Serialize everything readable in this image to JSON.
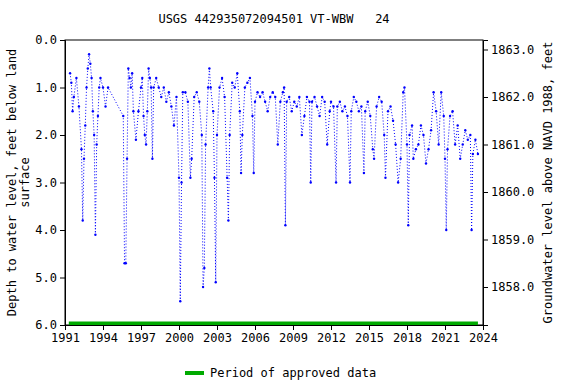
{
  "chart_data": {
    "type": "line",
    "title": "USGS 442935072094501 VT-WBW   24",
    "y_label": "Depth to water level, feet below land surface",
    "y2_label": "Groundwater level above NAVD 1988, feet",
    "xlim": [
      1991,
      2024
    ],
    "xticks": [
      1991,
      1994,
      1997,
      2000,
      2003,
      2006,
      2009,
      2012,
      2015,
      2018,
      2021,
      2024
    ],
    "ylim": [
      0,
      6
    ],
    "yticks": [
      {
        "value": 0,
        "label": "0.0"
      },
      {
        "value": 1,
        "label": "1.0"
      },
      {
        "value": 2,
        "label": "2.0"
      },
      {
        "value": 3,
        "label": "3.0"
      },
      {
        "value": 4,
        "label": "4.0"
      },
      {
        "value": 5,
        "label": "5.0"
      },
      {
        "value": 6,
        "label": "6.0"
      }
    ],
    "y2lim": [
      1863.2,
      1857.2
    ],
    "y2ticks": [
      {
        "value": 1858,
        "label": "1858.0"
      },
      {
        "value": 1859,
        "label": "1859.0"
      },
      {
        "value": 1860,
        "label": "1860.0"
      },
      {
        "value": 1861,
        "label": "1861.0"
      },
      {
        "value": 1862,
        "label": "1862.0"
      },
      {
        "value": 1863,
        "label": "1863.0"
      }
    ],
    "grid": false,
    "legend": "bottom",
    "series": [
      {
        "color": "#0000ff",
        "type": "line",
        "marker": "circle",
        "line_style": "dotted",
        "x": [
          1991.4,
          1991.5,
          1991.6,
          1991.7,
          1991.9,
          1992.1,
          1992.3,
          1992.4,
          1992.5,
          1992.6,
          1992.7,
          1992.8,
          1992.9,
          1993.0,
          1993.1,
          1993.2,
          1993.3,
          1993.4,
          1993.5,
          1993.6,
          1993.7,
          1993.8,
          1994.0,
          1994.2,
          1994.4,
          1995.6,
          1995.7,
          1995.8,
          1995.9,
          1996.0,
          1996.1,
          1996.2,
          1996.3,
          1996.4,
          1996.6,
          1996.8,
          1997.0,
          1997.1,
          1997.2,
          1997.3,
          1997.4,
          1997.5,
          1997.6,
          1997.7,
          1997.8,
          1997.9,
          1998.0,
          1998.2,
          1998.4,
          1998.6,
          1998.8,
          1999.0,
          1999.2,
          1999.4,
          1999.6,
          1999.8,
          2000.0,
          2000.1,
          2000.2,
          2000.3,
          2000.5,
          2000.7,
          2000.9,
          2001.0,
          2001.2,
          2001.4,
          2001.6,
          2001.8,
          2001.9,
          2002.0,
          2002.1,
          2002.3,
          2002.4,
          2002.5,
          2002.7,
          2002.8,
          2002.9,
          2003.0,
          2003.2,
          2003.4,
          2003.6,
          2003.8,
          2003.9,
          2004.0,
          2004.2,
          2004.4,
          2004.6,
          2004.8,
          2004.9,
          2005.0,
          2005.2,
          2005.4,
          2005.6,
          2005.8,
          2005.9,
          2006.0,
          2006.2,
          2006.4,
          2006.6,
          2006.8,
          2007.0,
          2007.2,
          2007.4,
          2007.6,
          2007.8,
          2008.0,
          2008.2,
          2008.3,
          2008.4,
          2008.5,
          2008.7,
          2008.9,
          2009.1,
          2009.3,
          2009.5,
          2009.7,
          2009.9,
          2010.1,
          2010.3,
          2010.4,
          2010.5,
          2010.7,
          2010.9,
          2011.1,
          2011.3,
          2011.5,
          2011.7,
          2011.9,
          2012.0,
          2012.2,
          2012.4,
          2012.5,
          2012.7,
          2012.9,
          2013.1,
          2013.3,
          2013.5,
          2013.6,
          2013.8,
          2014.0,
          2014.2,
          2014.4,
          2014.6,
          2014.7,
          2014.9,
          2015.1,
          2015.3,
          2015.4,
          2015.6,
          2015.8,
          2016.0,
          2016.2,
          2016.3,
          2016.5,
          2016.7,
          2016.9,
          2017.1,
          2017.3,
          2017.5,
          2017.7,
          2017.8,
          2018.0,
          2018.1,
          2018.2,
          2018.4,
          2018.5,
          2018.7,
          2018.9,
          2019.1,
          2019.3,
          2019.5,
          2019.7,
          2019.9,
          2020.1,
          2020.3,
          2020.5,
          2020.7,
          2020.9,
          2021.0,
          2021.1,
          2021.2,
          2021.4,
          2021.6,
          2021.8,
          2022.0,
          2022.2,
          2022.4,
          2022.6,
          2022.8,
          2023.0,
          2023.1,
          2023.2,
          2023.4,
          2023.6
        ],
        "values": [
          0.7,
          0.9,
          1.5,
          1.2,
          0.8,
          1.4,
          2.3,
          3.8,
          2.5,
          1.8,
          1.0,
          0.6,
          0.3,
          0.5,
          0.8,
          1.5,
          2.0,
          4.1,
          2.2,
          1.6,
          1.0,
          0.8,
          1.0,
          1.4,
          1.0,
          1.6,
          4.7,
          4.7,
          2.5,
          0.6,
          0.8,
          1.0,
          0.7,
          1.5,
          2.1,
          1.5,
          1.0,
          0.8,
          1.6,
          2.0,
          2.2,
          1.5,
          0.6,
          0.8,
          1.0,
          2.5,
          1.0,
          0.8,
          1.0,
          1.2,
          1.0,
          1.3,
          1.1,
          1.4,
          1.8,
          1.2,
          2.9,
          5.5,
          3.0,
          1.1,
          1.1,
          1.3,
          2.9,
          2.5,
          1.2,
          1.1,
          1.3,
          2.0,
          5.2,
          4.8,
          2.2,
          1.0,
          0.6,
          1.0,
          1.5,
          2.9,
          5.1,
          2.0,
          1.0,
          0.8,
          1.2,
          2.9,
          3.8,
          2.0,
          0.9,
          1.0,
          0.7,
          1.5,
          2.8,
          2.0,
          1.0,
          0.9,
          0.8,
          1.6,
          2.8,
          1.3,
          1.1,
          1.2,
          1.1,
          1.3,
          1.5,
          1.2,
          1.1,
          1.2,
          2.2,
          1.3,
          1.1,
          1.0,
          3.9,
          1.3,
          1.2,
          1.5,
          1.3,
          1.4,
          1.2,
          2.0,
          1.6,
          1.2,
          1.3,
          3.0,
          1.3,
          1.2,
          1.4,
          1.6,
          1.2,
          1.3,
          2.2,
          1.5,
          1.3,
          1.4,
          3.0,
          1.4,
          1.3,
          1.5,
          1.4,
          1.6,
          3.0,
          1.5,
          1.2,
          1.3,
          1.5,
          1.4,
          2.8,
          1.5,
          1.3,
          1.6,
          2.3,
          2.5,
          1.4,
          1.2,
          1.3,
          2.0,
          2.9,
          1.5,
          1.4,
          1.7,
          2.2,
          3.0,
          2.5,
          1.1,
          1.0,
          2.2,
          3.9,
          2.0,
          1.8,
          2.5,
          2.3,
          2.2,
          1.8,
          2.0,
          2.6,
          2.3,
          1.9,
          1.1,
          1.5,
          2.2,
          1.1,
          1.6,
          2.5,
          4.0,
          2.3,
          1.6,
          1.5,
          2.2,
          1.8,
          2.5,
          2.2,
          1.9,
          2.1,
          2.0,
          4.0,
          2.4,
          2.1,
          2.4
        ]
      },
      {
        "name": "Period of approved data",
        "color": "#00aa00",
        "type": "line",
        "line_style": "solid",
        "x": [
          1991.3,
          2023.6
        ],
        "values": [
          5.97,
          5.97
        ]
      }
    ]
  }
}
